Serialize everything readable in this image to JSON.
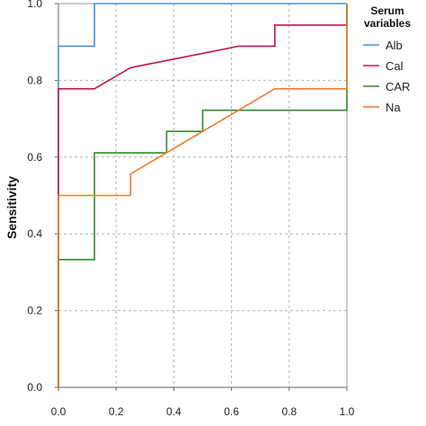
{
  "chart_data": {
    "type": "line",
    "ylabel": "Sensitivity",
    "xlabel": "",
    "xlim": [
      0,
      1
    ],
    "ylim": [
      0,
      1
    ],
    "xticks": [
      "0.0",
      "0.2",
      "0.4",
      "0.6",
      "0.8",
      "1.0"
    ],
    "yticks": [
      "0.0",
      "0.2",
      "0.4",
      "0.6",
      "0.8",
      "1.0"
    ],
    "grid": true,
    "legend_position": "right",
    "legend_title": [
      "Serum",
      "variables"
    ],
    "series": [
      {
        "name": "Alb",
        "color": "#4a90d9",
        "x": [
          0,
          0,
          0.125,
          0.125,
          1.0
        ],
        "y": [
          0,
          0.889,
          0.889,
          1.0,
          1.0
        ]
      },
      {
        "name": "Cal",
        "color": "#c0184a",
        "x": [
          0,
          0,
          0.125,
          0.25,
          0.625,
          0.75,
          0.75,
          1.0,
          1.0
        ],
        "y": [
          0,
          0.778,
          0.778,
          0.833,
          0.889,
          0.889,
          0.944,
          0.944,
          1.0
        ]
      },
      {
        "name": "CAR",
        "color": "#2e8b2e",
        "x": [
          0,
          0,
          0.125,
          0.125,
          0.375,
          0.375,
          0.5,
          0.5,
          1.0,
          1.0
        ],
        "y": [
          0,
          0.333,
          0.333,
          0.611,
          0.611,
          0.667,
          0.667,
          0.722,
          0.722,
          1.0
        ]
      },
      {
        "name": "Na",
        "color": "#f07a2a",
        "x": [
          0,
          0,
          0.25,
          0.25,
          0.75,
          1.0,
          1.0
        ],
        "y": [
          0,
          0.5,
          0.5,
          0.556,
          0.778,
          0.778,
          1.0
        ]
      }
    ]
  }
}
